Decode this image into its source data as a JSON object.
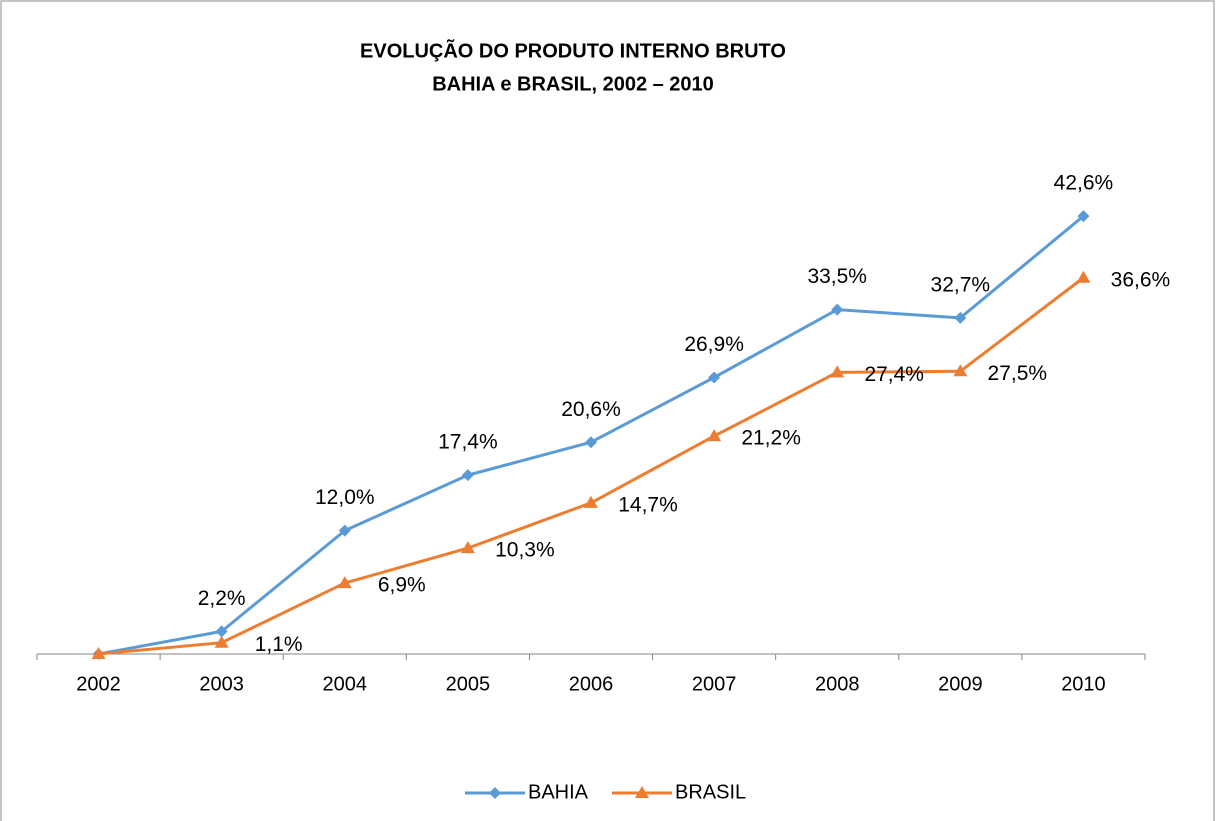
{
  "chart_data": {
    "type": "line",
    "title": "EVOLUÇÃO DO PRODUTO INTERNO BRUTO",
    "subtitle": "BAHIA e BRASIL, 2002 – 2010",
    "categories": [
      "2002",
      "2003",
      "2004",
      "2005",
      "2006",
      "2007",
      "2008",
      "2009",
      "2010"
    ],
    "series": [
      {
        "name": "BAHIA",
        "color": "#5b9bd5",
        "marker": "diamond",
        "values": [
          0,
          2.2,
          12.0,
          17.4,
          20.6,
          26.9,
          33.5,
          32.7,
          42.6
        ],
        "value_labels": [
          null,
          "2,2%",
          "12,0%",
          "17,4%",
          "20,6%",
          "26,9%",
          "33,5%",
          "32,7%",
          "42,6%"
        ]
      },
      {
        "name": "BRASIL",
        "color": "#ed7d31",
        "marker": "triangle",
        "values": [
          0,
          1.1,
          6.9,
          10.3,
          14.7,
          21.2,
          27.4,
          27.5,
          36.6
        ],
        "value_labels": [
          null,
          "1,1%",
          "6,9%",
          "10,3%",
          "14,7%",
          "21,2%",
          "27,4%",
          "27,5%",
          "36,6%"
        ]
      }
    ],
    "legend": "bottom"
  }
}
